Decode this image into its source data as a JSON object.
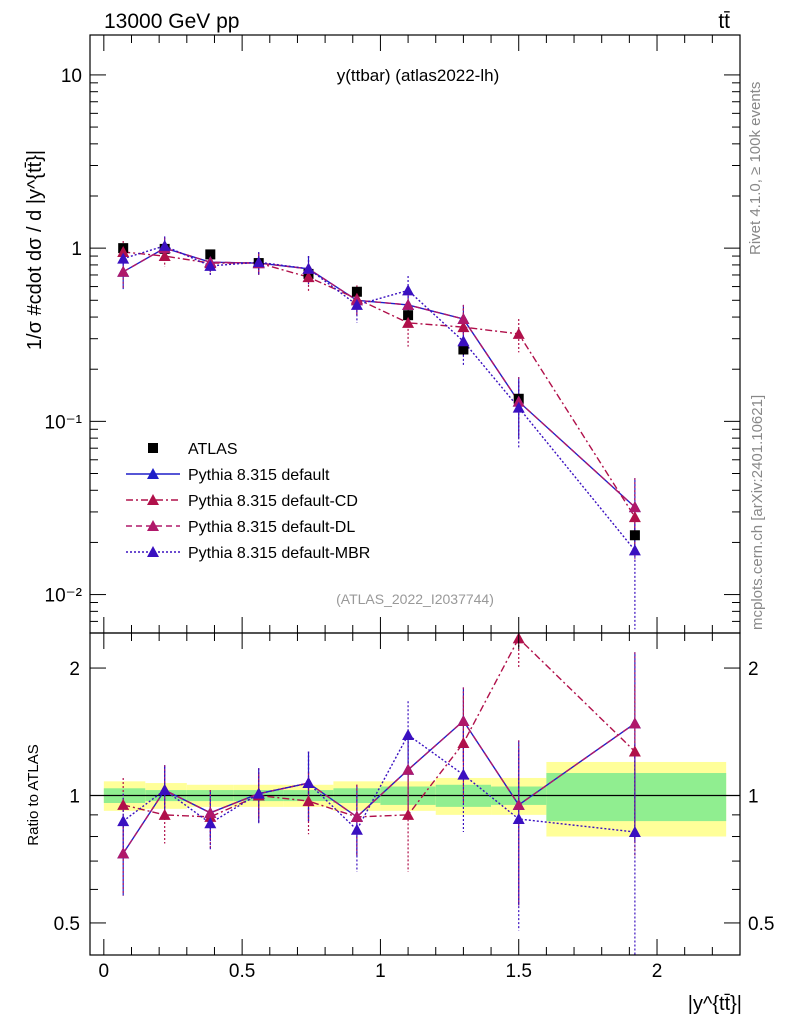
{
  "header": {
    "energy_label": "13000 GeV pp",
    "process_label": "tt̄"
  },
  "side_labels": {
    "rivet": "Rivet 4.1.0, ≥ 100k events",
    "mcplots": "mcplots.cern.ch [arXiv:2401.10621]"
  },
  "colors": {
    "data": "#000000",
    "default": "#1f1fc8",
    "default_cd": "#b0104a",
    "default_dl": "#b0186a",
    "default_mbr": "#3a10c0",
    "band_inner": "#90ee90",
    "band_outer": "#ffff99"
  },
  "chart_data": [
    {
      "type": "scatter",
      "panel": "main",
      "title": "y(ttbar) (atlas2022-lh)",
      "analysis_id": "(ATLAS_2022_I2037744)",
      "xlabel": "|y^{tt̄}|",
      "ylabel": "1/σ #cdot dσ / d |y^{tt̄}|",
      "yscale": "log",
      "xlim": [
        -0.05,
        2.3
      ],
      "ylim": [
        0.006,
        17
      ],
      "y_ticks": [
        {
          "value": 10,
          "label": "10"
        },
        {
          "value": 1,
          "label": "1"
        },
        {
          "value": 0.1,
          "label": "10⁻¹"
        },
        {
          "value": 0.01,
          "label": "10⁻²"
        }
      ],
      "legend_position": "lower-left",
      "x": [
        0.07,
        0.22,
        0.385,
        0.56,
        0.74,
        0.915,
        1.1,
        1.3,
        1.5,
        1.92
      ],
      "xerr": [
        0.07,
        0.08,
        0.085,
        0.09,
        0.09,
        0.085,
        0.1,
        0.1,
        0.1,
        0.32
      ],
      "series": [
        {
          "name": "ATLAS",
          "key": "data",
          "marker": "square",
          "line": "none",
          "values": [
            1.0,
            0.99,
            0.92,
            0.82,
            0.71,
            0.56,
            0.41,
            0.26,
            0.135,
            0.022
          ],
          "err": [
            0.05,
            0.04,
            0.04,
            0.04,
            0.04,
            0.04,
            0.03,
            0.02,
            0.01,
            0.003
          ]
        },
        {
          "name": "Pythia 8.315 default",
          "key": "default",
          "marker": "triangle",
          "line": "solid",
          "values": [
            0.73,
            1.0,
            0.83,
            0.82,
            0.76,
            0.5,
            0.47,
            0.39,
            0.13,
            0.032
          ],
          "err": [
            0.15,
            0.15,
            0.1,
            0.12,
            0.14,
            0.09,
            0.1,
            0.08,
            0.05,
            0.015
          ]
        },
        {
          "name": "Pythia 8.315 default-CD",
          "key": "default_cd",
          "marker": "triangle",
          "line": "dashdot",
          "values": [
            0.95,
            0.9,
            0.82,
            0.82,
            0.68,
            0.51,
            0.37,
            0.35,
            0.32,
            0.028
          ],
          "err": [
            0.15,
            0.12,
            0.12,
            0.1,
            0.12,
            0.1,
            0.1,
            0.1,
            0.07,
            0.012
          ]
        },
        {
          "name": "Pythia 8.315 default-DL",
          "key": "default_dl",
          "marker": "triangle",
          "line": "dashed",
          "values": [
            0.73,
            1.0,
            0.83,
            0.82,
            0.76,
            0.5,
            0.47,
            0.39,
            0.13,
            0.032
          ],
          "err": [
            0.15,
            0.15,
            0.1,
            0.12,
            0.14,
            0.09,
            0.1,
            0.08,
            0.05,
            0.015
          ]
        },
        {
          "name": "Pythia 8.315 default-MBR",
          "key": "default_mbr",
          "marker": "triangle",
          "line": "dotted",
          "values": [
            0.87,
            1.03,
            0.79,
            0.83,
            0.76,
            0.47,
            0.57,
            0.29,
            0.12,
            0.018
          ],
          "err": [
            0.14,
            0.14,
            0.1,
            0.12,
            0.14,
            0.1,
            0.12,
            0.08,
            0.05,
            0.012
          ]
        }
      ]
    },
    {
      "type": "scatter",
      "panel": "ratio",
      "xlabel": "|y^{tt̄}|",
      "ylabel": "Ratio to ATLAS",
      "yscale": "log",
      "xlim": [
        -0.05,
        2.3
      ],
      "ylim": [
        0.42,
        2.42
      ],
      "x_ticks": [
        0,
        0.5,
        1,
        1.5,
        2
      ],
      "x_tick_labels": [
        "0",
        "0.5",
        "1",
        "1.5",
        "2"
      ],
      "y_ticks": [
        0.5,
        1,
        2
      ],
      "y_tick_labels": [
        "0.5",
        "1",
        "2"
      ],
      "bins": [
        [
          0,
          0.15
        ],
        [
          0.15,
          0.3
        ],
        [
          0.3,
          0.47
        ],
        [
          0.47,
          0.65
        ],
        [
          0.65,
          0.83
        ],
        [
          0.83,
          1.0
        ],
        [
          1.0,
          1.2
        ],
        [
          1.2,
          1.4
        ],
        [
          1.4,
          1.6
        ],
        [
          1.6,
          2.25
        ]
      ],
      "band_inner": [
        0.04,
        0.03,
        0.03,
        0.03,
        0.03,
        0.04,
        0.05,
        0.06,
        0.05,
        0.13
      ],
      "band_outer": [
        0.08,
        0.07,
        0.06,
        0.06,
        0.06,
        0.08,
        0.08,
        0.1,
        0.1,
        0.2
      ],
      "x": [
        0.07,
        0.22,
        0.385,
        0.56,
        0.74,
        0.915,
        1.1,
        1.3,
        1.5,
        1.92
      ],
      "series": [
        {
          "key": "default",
          "values": [
            0.73,
            1.03,
            0.91,
            1.01,
            1.07,
            0.89,
            1.15,
            1.5,
            0.95,
            1.48
          ],
          "err": [
            0.15,
            0.15,
            0.12,
            0.15,
            0.2,
            0.17,
            0.25,
            0.3,
            0.4,
            0.7
          ]
        },
        {
          "key": "default_cd",
          "values": [
            0.95,
            0.9,
            0.89,
            1.0,
            0.97,
            0.89,
            0.9,
            1.33,
            2.35,
            1.27
          ],
          "err": [
            0.15,
            0.13,
            0.14,
            0.12,
            0.16,
            0.17,
            0.24,
            0.38,
            0.35,
            0.55
          ]
        },
        {
          "key": "default_dl",
          "values": [
            0.73,
            1.03,
            0.91,
            1.01,
            1.07,
            0.89,
            1.15,
            1.5,
            0.95,
            1.48
          ],
          "err": [
            0.15,
            0.15,
            0.12,
            0.15,
            0.2,
            0.17,
            0.25,
            0.3,
            0.4,
            0.7
          ]
        },
        {
          "key": "default_mbr",
          "values": [
            0.87,
            1.03,
            0.86,
            1.01,
            1.07,
            0.83,
            1.39,
            1.12,
            0.88,
            0.82
          ],
          "err": [
            0.14,
            0.14,
            0.12,
            0.15,
            0.2,
            0.17,
            0.28,
            0.3,
            0.4,
            0.5
          ]
        }
      ]
    }
  ]
}
